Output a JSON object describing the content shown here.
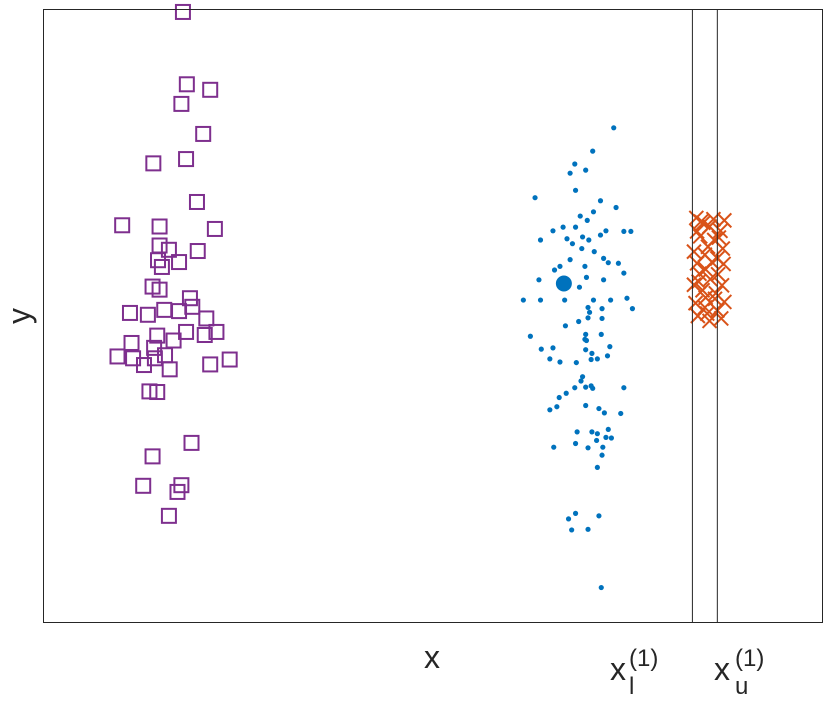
{
  "chart_data": {
    "type": "scatter",
    "title": "",
    "xlabel": "x",
    "ylabel": "y",
    "xlim": [
      0,
      100
    ],
    "ylim": [
      0,
      100
    ],
    "grid": false,
    "legend": "none",
    "ticks": {
      "x": [],
      "y": []
    },
    "vertical_lines": [
      {
        "x": 83.3,
        "label_main": "x",
        "label_sub": "l",
        "label_sup": "(1)"
      },
      {
        "x": 86.5,
        "label_main": "x",
        "label_sub": "u",
        "label_sup": "(1)"
      }
    ],
    "series": [
      {
        "marker": "square",
        "color": "#7E2F8E",
        "points": [
          [
            17.9,
            99.6
          ],
          [
            18.4,
            87.8
          ],
          [
            21.4,
            86.9
          ],
          [
            17.7,
            84.6
          ],
          [
            20.5,
            79.7
          ],
          [
            14.1,
            74.9
          ],
          [
            18.3,
            75.6
          ],
          [
            19.7,
            68.6
          ],
          [
            10.1,
            64.8
          ],
          [
            14.9,
            64.6
          ],
          [
            22.0,
            64.2
          ],
          [
            14.9,
            61.5
          ],
          [
            16.1,
            60.8
          ],
          [
            19.8,
            60.6
          ],
          [
            14.7,
            59.1
          ],
          [
            17.4,
            58.8
          ],
          [
            15.2,
            58.0
          ],
          [
            14.0,
            54.8
          ],
          [
            14.9,
            54.3
          ],
          [
            18.8,
            52.9
          ],
          [
            11.1,
            50.5
          ],
          [
            13.4,
            50.2
          ],
          [
            15.5,
            51.0
          ],
          [
            17.4,
            50.8
          ],
          [
            19.1,
            51.5
          ],
          [
            20.9,
            49.6
          ],
          [
            18.3,
            47.4
          ],
          [
            22.2,
            47.4
          ],
          [
            20.7,
            46.9
          ],
          [
            14.6,
            46.8
          ],
          [
            11.3,
            45.6
          ],
          [
            16.7,
            46.0
          ],
          [
            14.2,
            44.8
          ],
          [
            9.5,
            43.4
          ],
          [
            11.5,
            43.1
          ],
          [
            14.3,
            43.1
          ],
          [
            15.6,
            43.6
          ],
          [
            23.9,
            42.9
          ],
          [
            12.9,
            42.0
          ],
          [
            16.2,
            41.3
          ],
          [
            21.4,
            42.1
          ],
          [
            13.6,
            37.7
          ],
          [
            14.6,
            37.6
          ],
          [
            19.0,
            29.3
          ],
          [
            14.0,
            27.1
          ],
          [
            12.8,
            22.3
          ],
          [
            17.7,
            22.4
          ],
          [
            17.2,
            21.3
          ],
          [
            16.1,
            17.4
          ]
        ]
      },
      {
        "marker": "dot",
        "color": "#0072BD",
        "points": [
          [
            73.2,
            80.7
          ],
          [
            70.5,
            76.9
          ],
          [
            68.2,
            74.8
          ],
          [
            69.6,
            73.8
          ],
          [
            67.6,
            73.3
          ],
          [
            63.1,
            69.3
          ],
          [
            68.3,
            70.5
          ],
          [
            71.5,
            68.8
          ],
          [
            68.9,
            66.3
          ],
          [
            70.6,
            67.0
          ],
          [
            69.8,
            65.6
          ],
          [
            73.5,
            67.7
          ],
          [
            68.3,
            64.5
          ],
          [
            65.4,
            63.9
          ],
          [
            72.2,
            63.9
          ],
          [
            70.0,
            62.4
          ],
          [
            69.2,
            62.9
          ],
          [
            67.2,
            62.6
          ],
          [
            66.7,
            64.5
          ],
          [
            67.9,
            61.8
          ],
          [
            69.1,
            61.0
          ],
          [
            71.5,
            63.2
          ],
          [
            74.5,
            63.8
          ],
          [
            75.4,
            63.8
          ],
          [
            63.8,
            62.4
          ],
          [
            70.7,
            60.5
          ],
          [
            71.9,
            59.4
          ],
          [
            67.6,
            59.2
          ],
          [
            66.3,
            58.1
          ],
          [
            69.5,
            58.1
          ],
          [
            72.5,
            58.7
          ],
          [
            65.6,
            57.5
          ],
          [
            73.8,
            58.6
          ],
          [
            69.7,
            56.3
          ],
          [
            74.5,
            57.0
          ],
          [
            71.9,
            55.9
          ],
          [
            66.5,
            55.5
          ],
          [
            68.8,
            54.7
          ],
          [
            63.6,
            55.9
          ],
          [
            61.6,
            52.6
          ],
          [
            63.8,
            52.6
          ],
          [
            66.9,
            52.6
          ],
          [
            70.6,
            52.6
          ],
          [
            72.8,
            52.6
          ],
          [
            74.9,
            52.9
          ],
          [
            69.9,
            51.4
          ],
          [
            71.7,
            51.2
          ],
          [
            75.6,
            51.2
          ],
          [
            70.1,
            50.6
          ],
          [
            71.7,
            49.6
          ],
          [
            68.7,
            49.1
          ],
          [
            67.0,
            48.4
          ],
          [
            69.9,
            49.7
          ],
          [
            69.6,
            47.0
          ],
          [
            69.5,
            46.2
          ],
          [
            62.5,
            46.7
          ],
          [
            71.6,
            47.0
          ],
          [
            69.7,
            46.0
          ],
          [
            63.9,
            44.6
          ],
          [
            65.4,
            44.8
          ],
          [
            69.6,
            44.5
          ],
          [
            72.7,
            45.0
          ],
          [
            70.4,
            43.9
          ],
          [
            65.0,
            43.0
          ],
          [
            70.3,
            42.9
          ],
          [
            71.1,
            43.0
          ],
          [
            72.4,
            43.5
          ],
          [
            66.3,
            42.5
          ],
          [
            68.4,
            42.4
          ],
          [
            69.0,
            39.4
          ],
          [
            69.2,
            40.1
          ],
          [
            69.6,
            38.4
          ],
          [
            70.3,
            38.6
          ],
          [
            68.2,
            38.3
          ],
          [
            67.1,
            37.4
          ],
          [
            74.5,
            38.3
          ],
          [
            70.5,
            38.2
          ],
          [
            66.2,
            36.7
          ],
          [
            69.6,
            35.4
          ],
          [
            71.3,
            34.9
          ],
          [
            72.0,
            34.2
          ],
          [
            65.9,
            35.2
          ],
          [
            65.0,
            34.7
          ],
          [
            74.1,
            34.1
          ],
          [
            72.5,
            31.5
          ],
          [
            70.4,
            31.1
          ],
          [
            68.3,
            29.2
          ],
          [
            65.5,
            28.6
          ],
          [
            71.7,
            27.3
          ],
          [
            71.0,
            29.7
          ],
          [
            71.8,
            28.6
          ],
          [
            69.9,
            28.5
          ],
          [
            72.2,
            30.2
          ],
          [
            72.9,
            30.1
          ],
          [
            71.1,
            30.8
          ],
          [
            68.5,
            31.1
          ],
          [
            71.1,
            25.3
          ],
          [
            67.8,
            15.1
          ],
          [
            69.9,
            15.2
          ],
          [
            67.4,
            16.9
          ],
          [
            71.3,
            17.4
          ],
          [
            68.3,
            17.8
          ],
          [
            71.6,
            5.7
          ]
        ]
      },
      {
        "marker": "dot-large",
        "color": "#0072BD",
        "points": [
          [
            66.8,
            55.3
          ]
        ]
      },
      {
        "marker": "x",
        "color": "#D95319",
        "points": [
          [
            83.8,
            66.0
          ],
          [
            86.0,
            65.8
          ],
          [
            84.7,
            65.2
          ],
          [
            87.4,
            65.6
          ],
          [
            85.5,
            64.6
          ],
          [
            83.9,
            63.8
          ],
          [
            86.9,
            63.9
          ],
          [
            84.3,
            63.0
          ],
          [
            86.1,
            62.4
          ],
          [
            85.3,
            61.3
          ],
          [
            83.5,
            60.5
          ],
          [
            87.2,
            61.0
          ],
          [
            84.9,
            60.0
          ],
          [
            86.5,
            59.4
          ],
          [
            83.9,
            58.6
          ],
          [
            87.3,
            58.5
          ],
          [
            85.0,
            57.6
          ],
          [
            84.2,
            56.9
          ],
          [
            86.6,
            56.8
          ],
          [
            85.6,
            56.0
          ],
          [
            83.5,
            55.1
          ],
          [
            87.1,
            55.0
          ],
          [
            84.6,
            54.2
          ],
          [
            86.3,
            53.7
          ],
          [
            85.0,
            53.0
          ],
          [
            83.7,
            52.1
          ],
          [
            87.4,
            52.3
          ],
          [
            84.9,
            51.4
          ],
          [
            86.5,
            50.9
          ],
          [
            84.0,
            50.0
          ],
          [
            87.0,
            49.6
          ],
          [
            85.5,
            49.2
          ],
          [
            84.4,
            65.4
          ],
          [
            86.7,
            62.8
          ],
          [
            85.8,
            58.8
          ],
          [
            84.1,
            55.6
          ],
          [
            86.2,
            52.8
          ],
          [
            85.2,
            50.4
          ]
        ]
      }
    ]
  }
}
